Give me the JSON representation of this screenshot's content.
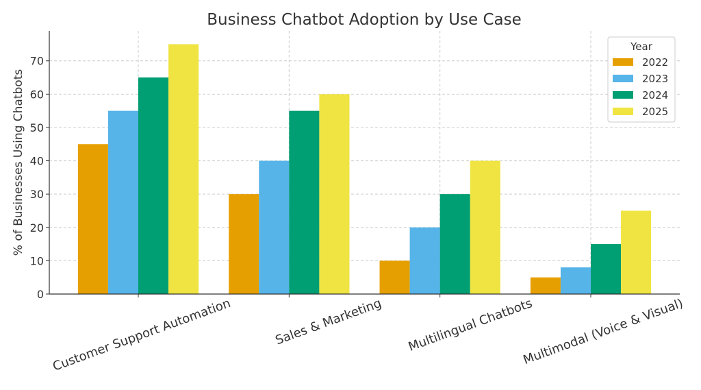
{
  "chart_data": {
    "type": "bar",
    "title": "Business Chatbot Adoption by Use Case",
    "xlabel": "",
    "ylabel": "% of Businesses Using Chatbots",
    "ylim": [
      0,
      79
    ],
    "yticks": [
      0,
      10,
      20,
      30,
      40,
      50,
      60,
      70
    ],
    "grid": true,
    "legend": {
      "title": "Year",
      "placement": "top-right"
    },
    "categories": [
      "Customer Support Automation",
      "Sales & Marketing",
      "Multilingual Chatbots",
      "Multimodal (Voice & Visual)"
    ],
    "series": [
      {
        "name": "2022",
        "color": "#E69F00",
        "values": [
          45,
          30,
          10,
          5
        ]
      },
      {
        "name": "2023",
        "color": "#56B4E9",
        "values": [
          55,
          40,
          20,
          8
        ]
      },
      {
        "name": "2024",
        "color": "#009E73",
        "values": [
          65,
          55,
          30,
          15
        ]
      },
      {
        "name": "2025",
        "color": "#F0E442",
        "values": [
          75,
          60,
          40,
          25
        ]
      }
    ]
  }
}
